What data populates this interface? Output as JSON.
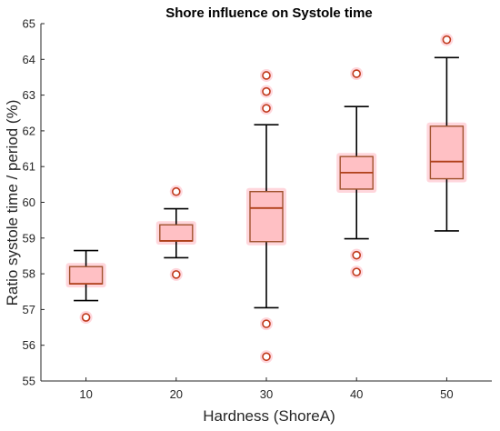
{
  "chart_data": {
    "type": "boxplot",
    "title": "Shore influence on Systole time",
    "xlabel": "Hardness (ShoreA)",
    "ylabel": "Ratio systole time / period (%)",
    "categories": [
      "10",
      "20",
      "30",
      "40",
      "50"
    ],
    "ylim": [
      55,
      65
    ],
    "yticks": [
      55,
      56,
      57,
      58,
      59,
      60,
      61,
      62,
      63,
      64,
      65
    ],
    "grid": false,
    "colors": {
      "box_fill": "#ffc0c4",
      "box_glow": "#ffd6dc",
      "box_edge": "#a0522d",
      "median": "#b0401a",
      "outlier": "#c0391b",
      "whisker": "#000000"
    },
    "boxes": [
      {
        "category": "10",
        "q1": 57.72,
        "median": 57.72,
        "q3": 58.2,
        "whisker_low": 57.25,
        "whisker_high": 58.65,
        "outliers": [
          56.78
        ]
      },
      {
        "category": "20",
        "q1": 58.92,
        "median": 58.92,
        "q3": 59.37,
        "whisker_low": 58.45,
        "whisker_high": 59.82,
        "outliers": [
          57.98,
          60.3
        ]
      },
      {
        "category": "30",
        "q1": 58.9,
        "median": 59.84,
        "q3": 60.3,
        "whisker_low": 57.05,
        "whisker_high": 62.17,
        "outliers": [
          55.68,
          56.6,
          62.63,
          63.1,
          63.55
        ]
      },
      {
        "category": "40",
        "q1": 60.37,
        "median": 60.83,
        "q3": 61.28,
        "whisker_low": 58.98,
        "whisker_high": 62.68,
        "outliers": [
          58.05,
          58.52,
          63.6
        ]
      },
      {
        "category": "50",
        "q1": 60.66,
        "median": 61.14,
        "q3": 62.13,
        "whisker_low": 59.2,
        "whisker_high": 64.05,
        "outliers": [
          64.55
        ]
      }
    ]
  }
}
